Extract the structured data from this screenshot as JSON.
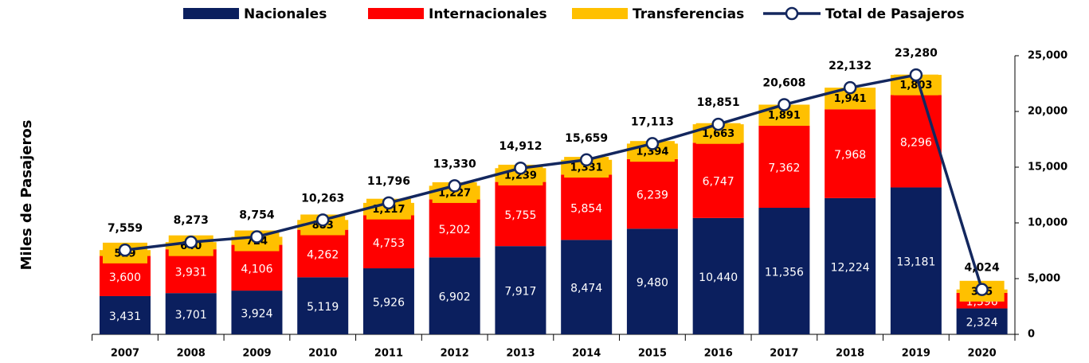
{
  "chart_data": {
    "type": "bar",
    "stacked": true,
    "y_label": "Miles de Pasajeros",
    "categories": [
      "2007",
      "2008",
      "2009",
      "2010",
      "2011",
      "2012",
      "2013",
      "2014",
      "2015",
      "2016",
      "2017",
      "2018",
      "2019",
      "2020"
    ],
    "series": [
      {
        "name": "Nacionales",
        "type": "bar",
        "color": "#0b1f5e",
        "values": [
          3431,
          3701,
          3924,
          5119,
          5926,
          6902,
          7917,
          8474,
          9480,
          10440,
          11356,
          12224,
          13181,
          2324
        ],
        "value_labels": [
          "3,431",
          "3,701",
          "3,924",
          "5,119",
          "5,926",
          "6,902",
          "7,917",
          "8,474",
          "9,480",
          "10,440",
          "11,356",
          "12,224",
          "13,181",
          "2,324"
        ]
      },
      {
        "name": "Internacionales",
        "type": "bar",
        "color": "#ff0000",
        "values": [
          3600,
          3931,
          4106,
          4262,
          4753,
          5202,
          5755,
          5854,
          6239,
          6747,
          7362,
          7968,
          8296,
          1396
        ],
        "value_labels": [
          "3,600",
          "3,931",
          "4,106",
          "4,262",
          "4,753",
          "5,202",
          "5,755",
          "5,854",
          "6,239",
          "6,747",
          "7,362",
          "7,968",
          "8,296",
          "1,396"
        ]
      },
      {
        "name": "Transferencias",
        "type": "bar",
        "color": "#ffc000",
        "values": [
          529,
          640,
          724,
          883,
          1117,
          1227,
          1239,
          1331,
          1394,
          1663,
          1891,
          1941,
          1803,
          305
        ],
        "value_labels": [
          "529",
          "640",
          "724",
          "883",
          "1,117",
          "1,227",
          "1,239",
          "1,331",
          "1,394",
          "1,663",
          "1,891",
          "1,941",
          "1,803",
          "305"
        ]
      },
      {
        "name": "Total de Pasajeros",
        "type": "line",
        "color": "#13275e",
        "values": [
          7559,
          8273,
          8754,
          10263,
          11796,
          13330,
          14912,
          15659,
          17113,
          18851,
          20608,
          22132,
          23280,
          4024
        ],
        "value_labels": [
          "7,559",
          "8,273",
          "8,754",
          "10,263",
          "11,796",
          "13,330",
          "14,912",
          "15,659",
          "17,113",
          "18,851",
          "20,608",
          "22,132",
          "23,280",
          "4,024"
        ]
      }
    ],
    "ylim": [
      0,
      25000
    ],
    "yticks": [
      0,
      {
        "value": 5000,
        "label": "5,000"
      },
      {
        "value": 10000,
        "label": "10,000"
      },
      {
        "value": 15000,
        "label": "15,000"
      },
      {
        "value": 20000,
        "label": "20,000"
      },
      {
        "value": 25000,
        "label": "25,000"
      }
    ],
    "y_axis_side": "right",
    "grid": false,
    "legend": "top"
  }
}
